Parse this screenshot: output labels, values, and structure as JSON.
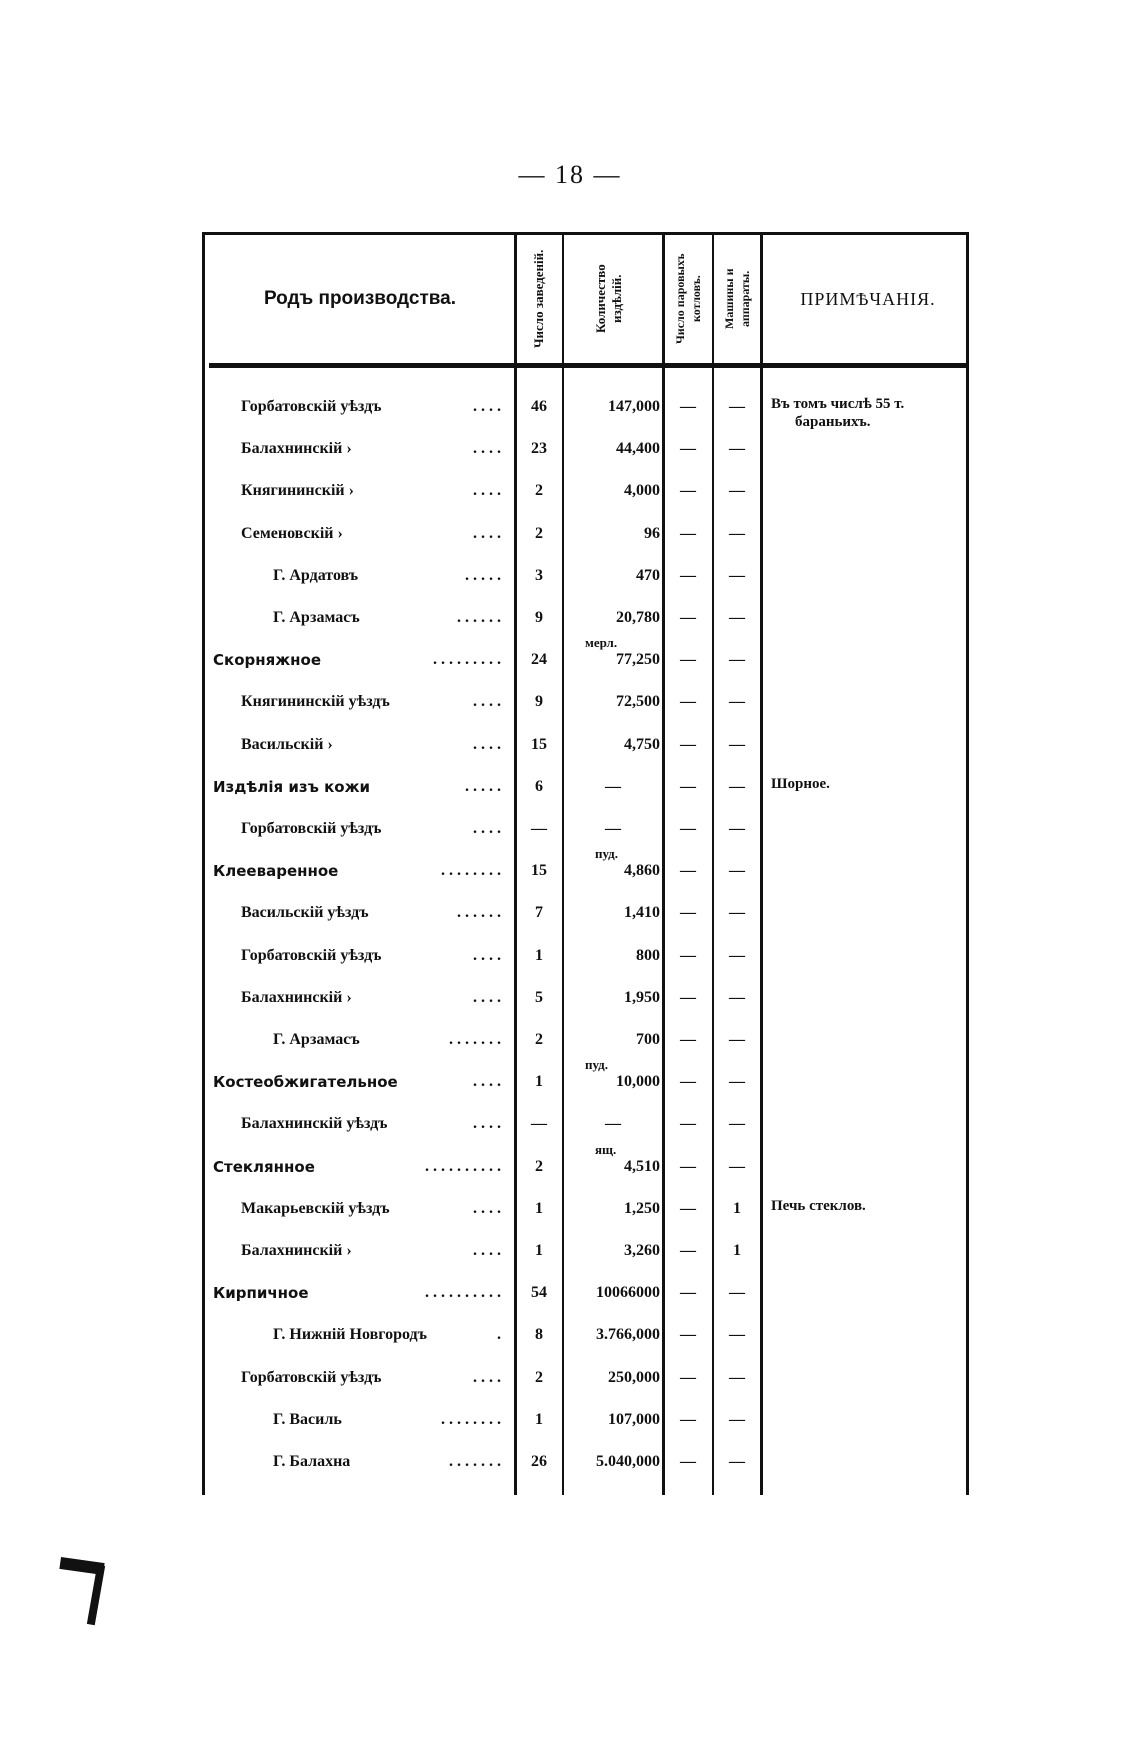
{
  "page_number": "— 18 —",
  "header": {
    "production_type": "Родъ производства.",
    "establishments": "Число заведеній.",
    "quantity": "Количество издѣлій.",
    "steam_boilers": "Число паровыхъ котловъ.",
    "machines": "Машины и аппараты.",
    "notes": "ПРИМѢЧАНІЯ."
  },
  "rows": [
    {
      "name": "Горбатовскій уѣздъ",
      "dots": "....",
      "est": "46",
      "qty": "147,000",
      "boil": "—",
      "mach": "—",
      "note": "Въ томъ числѣ 55 т.",
      "note2": "бараньихъ.",
      "cat": false,
      "indent": 1
    },
    {
      "name": "Балахнинскій   ›",
      "dots": "....",
      "est": "23",
      "qty": "44,400",
      "boil": "—",
      "mach": "—",
      "cat": false,
      "indent": 1
    },
    {
      "name": "Княгининскій   ›",
      "dots": "....",
      "est": "2",
      "qty": "4,000",
      "boil": "—",
      "mach": "—",
      "cat": false,
      "indent": 1
    },
    {
      "name": "Семеновскій    ›",
      "dots": "....",
      "est": "2",
      "qty": "96",
      "boil": "—",
      "mach": "—",
      "cat": false,
      "indent": 1
    },
    {
      "name": "Г. Ардатовъ",
      "dots": ".....",
      "est": "3",
      "qty": "470",
      "boil": "—",
      "mach": "—",
      "cat": false,
      "indent": 2
    },
    {
      "name": "Г. Арзамасъ",
      "dots": "......",
      "est": "9",
      "qty": "20,780",
      "boil": "—",
      "mach": "—",
      "cat": false,
      "indent": 2
    },
    {
      "name": "Скорняжное",
      "dots": ".........",
      "est": "24",
      "qty": "77,250",
      "unit": "мерл.",
      "boil": "—",
      "mach": "—",
      "cat": true
    },
    {
      "name": "Княгининскій уѣздъ",
      "dots": "....",
      "est": "9",
      "qty": "72,500",
      "boil": "—",
      "mach": "—",
      "cat": false,
      "indent": 1
    },
    {
      "name": "Васильскій     ›",
      "dots": "....",
      "est": "15",
      "qty": "4,750",
      "boil": "—",
      "mach": "—",
      "cat": false,
      "indent": 1
    },
    {
      "name": "Издѣлія изъ кожи",
      "dots": ".....",
      "est": "6",
      "qty": "—",
      "boil": "—",
      "mach": "—",
      "note": "Шорное.",
      "cat": true
    },
    {
      "name": "Горбатовскій уѣздъ",
      "dots": "....",
      "est": "—",
      "qty": "—",
      "boil": "—",
      "mach": "—",
      "cat": false,
      "indent": 1
    },
    {
      "name": "Клееваренное",
      "dots": "........",
      "est": "15",
      "qty": "4,860",
      "unit": "пуд.",
      "boil": "—",
      "mach": "—",
      "cat": true
    },
    {
      "name": "Васильскій уѣздъ",
      "dots": "......",
      "est": "7",
      "qty": "1,410",
      "boil": "—",
      "mach": "—",
      "cat": false,
      "indent": 1
    },
    {
      "name": "Горбатовскій уѣздъ",
      "dots": "....",
      "est": "1",
      "qty": "800",
      "boil": "—",
      "mach": "—",
      "cat": false,
      "indent": 1
    },
    {
      "name": "Балахнинскій   ›",
      "dots": "....",
      "est": "5",
      "qty": "1,950",
      "boil": "—",
      "mach": "—",
      "cat": false,
      "indent": 1
    },
    {
      "name": "Г. Арзамасъ",
      "dots": ".......",
      "est": "2",
      "qty": "700",
      "boil": "—",
      "mach": "—",
      "cat": false,
      "indent": 2
    },
    {
      "name": "Костеобжигательное",
      "dots": "....",
      "est": "1",
      "qty": "10,000",
      "unit": "пуд.",
      "boil": "—",
      "mach": "—",
      "cat": true
    },
    {
      "name": "Балахнинскій уѣздъ",
      "dots": "....",
      "est": "—",
      "qty": "—",
      "boil": "—",
      "mach": "—",
      "cat": false,
      "indent": 1
    },
    {
      "name": "Стеклянное",
      "dots": "..........",
      "est": "2",
      "qty": "4,510",
      "unit": "ящ.",
      "boil": "—",
      "mach": "—",
      "cat": true
    },
    {
      "name": "Макарьевскій уѣздъ",
      "dots": "....",
      "est": "1",
      "qty": "1,250",
      "boil": "—",
      "mach": "1",
      "note": "Печь стеклов.",
      "cat": false,
      "indent": 1
    },
    {
      "name": "Балахнинскій   ›",
      "dots": "....",
      "est": "1",
      "qty": "3,260",
      "boil": "—",
      "mach": "1",
      "cat": false,
      "indent": 1
    },
    {
      "name": "Кирпичное",
      "dots": "..........",
      "est": "54",
      "qty": "10066000",
      "boil": "—",
      "mach": "—",
      "cat": true
    },
    {
      "name": "Г. Нижній Новгородъ",
      "dots": ".",
      "est": "8",
      "qty": "3.766,000",
      "boil": "—",
      "mach": "—",
      "cat": false,
      "indent": 2
    },
    {
      "name": "Горбатовскій уѣздъ",
      "dots": "....",
      "est": "2",
      "qty": "250,000",
      "boil": "—",
      "mach": "—",
      "cat": false,
      "indent": 1
    },
    {
      "name": "Г. Василь",
      "dots": "........",
      "est": "1",
      "qty": "107,000",
      "boil": "—",
      "mach": "—",
      "cat": false,
      "indent": 2
    },
    {
      "name": "Г. Балахна",
      "dots": ".......",
      "est": "26",
      "qty": "5.040,000",
      "boil": "—",
      "mach": "—",
      "cat": false,
      "indent": 2
    }
  ]
}
